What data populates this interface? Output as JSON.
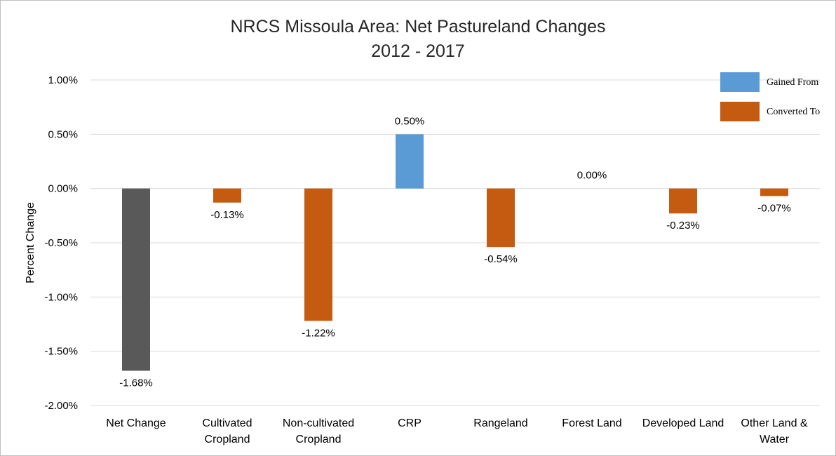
{
  "chart_data": {
    "type": "bar",
    "title_line1": "NRCS Missoula Area: Net Pastureland Changes",
    "title_line2": "2012 - 2017",
    "xlabel": "",
    "ylabel": "Percent Change",
    "ylim": [
      -2.0,
      1.0
    ],
    "y_ticks": [
      {
        "value": 1.0,
        "label": "1.00%"
      },
      {
        "value": 0.5,
        "label": "0.50%"
      },
      {
        "value": 0.0,
        "label": "0.00%"
      },
      {
        "value": -0.5,
        "label": "-0.50%"
      },
      {
        "value": -1.0,
        "label": "-1.00%"
      },
      {
        "value": -1.5,
        "label": "-1.50%"
      },
      {
        "value": -2.0,
        "label": "-2.00%"
      }
    ],
    "grid": true,
    "legend_position": "top-right",
    "legend": [
      {
        "name": "Gained From",
        "color": "#5b9bd5"
      },
      {
        "name": "Converted To",
        "color": "#c55a11"
      }
    ],
    "categories": [
      {
        "lines": [
          "Net Change"
        ],
        "value": -1.68,
        "label": "-1.68%",
        "color": "#595959"
      },
      {
        "lines": [
          "Cultivated",
          "Cropland"
        ],
        "value": -0.13,
        "label": "-0.13%",
        "color": "#c55a11"
      },
      {
        "lines": [
          "Non-cultivated",
          "Cropland"
        ],
        "value": -1.22,
        "label": "-1.22%",
        "color": "#c55a11"
      },
      {
        "lines": [
          "CRP"
        ],
        "value": 0.5,
        "label": "0.50%",
        "color": "#5b9bd5"
      },
      {
        "lines": [
          "Rangeland"
        ],
        "value": -0.54,
        "label": "-0.54%",
        "color": "#c55a11"
      },
      {
        "lines": [
          "Forest Land"
        ],
        "value": 0.0,
        "label": "0.00%",
        "color": "#c55a11"
      },
      {
        "lines": [
          "Developed Land"
        ],
        "value": -0.23,
        "label": "-0.23%",
        "color": "#c55a11"
      },
      {
        "lines": [
          "Other Land &",
          "Water"
        ],
        "value": -0.07,
        "label": "-0.07%",
        "color": "#c55a11"
      }
    ]
  }
}
